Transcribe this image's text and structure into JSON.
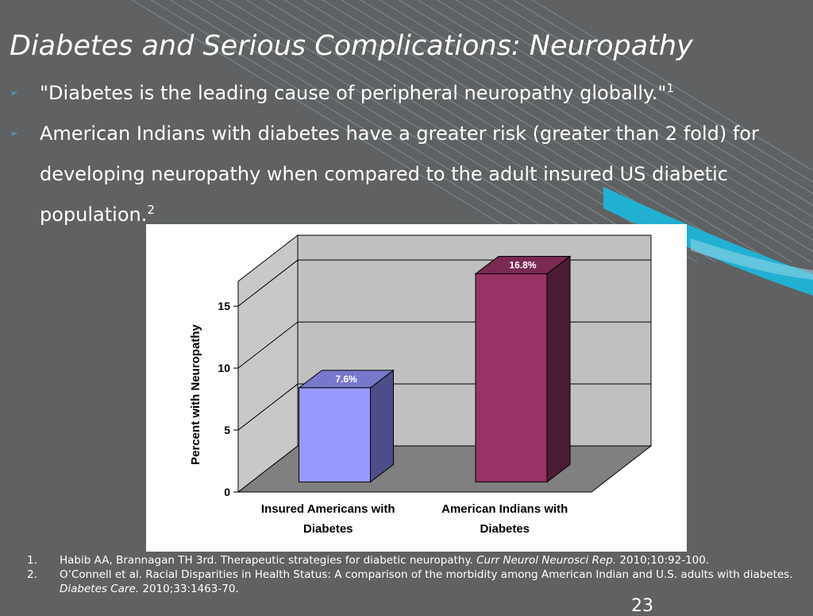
{
  "slide": {
    "title": "Diabetes and Serious Complications: Neuropathy",
    "bullets": [
      {
        "text": "\"Diabetes is the leading cause of peripheral neuropathy globally.\"",
        "sup": "1"
      },
      {
        "text": "American Indians with diabetes have a greater risk (greater than 2 fold) for developing neuropathy when compared to the adult insured US diabetic population.",
        "sup": "2"
      }
    ],
    "footnotes": [
      {
        "num": "1.",
        "pre": "Habib AA, Brannagan TH 3rd. Therapeutic strategies for diabetic neuropathy. ",
        "journal": "Curr Neurol Neurosci Rep.",
        "post": " 2010;10:92-100."
      },
      {
        "num": "2.",
        "pre": "O’Connell et al. Racial Disparities in Health Status: A comparison of the morbidity among American Indian and U.S. adults with diabetes. ",
        "journal": "Diabetes Care.",
        "post": " 2010;33:1463-70."
      }
    ],
    "page_number": "23",
    "colors": {
      "background": "#5f6162",
      "accent_stripes": "#1fb4d8"
    }
  },
  "chart_data": {
    "type": "bar",
    "categories": [
      "Insured Americans with Diabetes",
      "American Indians with Diabetes"
    ],
    "category_lines": [
      [
        "Insured Americans with",
        "Diabetes"
      ],
      [
        "American Indians with",
        "Diabetes"
      ]
    ],
    "values": [
      7.6,
      16.8
    ],
    "data_labels": [
      "7.6%",
      "16.8%"
    ],
    "ylabel": "Percent with Neuropathy",
    "yticks": [
      0,
      5,
      10,
      15
    ],
    "ylim": [
      0,
      17
    ],
    "grid": true,
    "three_d": true,
    "colors": [
      {
        "front": "#9999ff",
        "side": "#4d4d8a",
        "top": "#7777cc"
      },
      {
        "front": "#993366",
        "side": "#4e1b35",
        "top": "#7a2952"
      }
    ]
  }
}
